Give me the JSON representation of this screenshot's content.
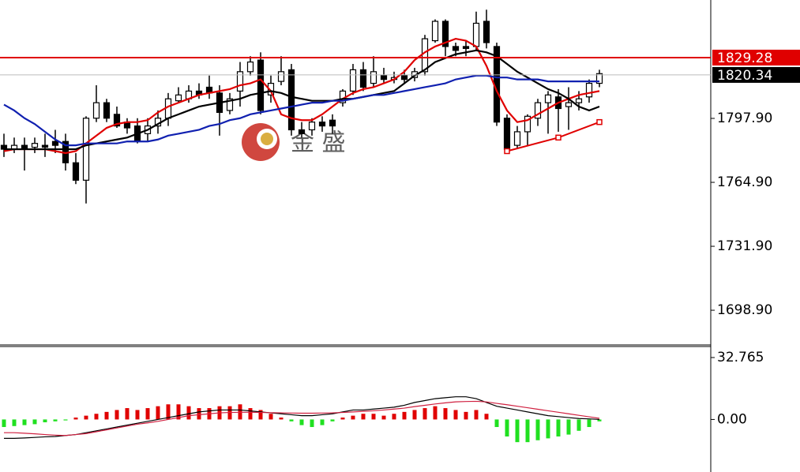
{
  "watermark": "金 盛",
  "chart_data": [
    {
      "type": "candlestick",
      "open": [
        1784,
        1782,
        1784,
        1783,
        1784,
        1786,
        1786,
        1775,
        1766,
        1798,
        1806,
        1800,
        1796,
        1794,
        1790,
        1794,
        1798,
        1807,
        1808,
        1812,
        1814,
        1811,
        1802,
        1812,
        1822,
        1828,
        1810,
        1817,
        1823,
        1792,
        1792,
        1796,
        1797,
        1806,
        1812,
        1823,
        1816,
        1820,
        1818,
        1820,
        1819,
        1822,
        1838,
        1848,
        1835,
        1835,
        1835,
        1848,
        1835,
        1798,
        1784,
        1791,
        1798,
        1806,
        1809,
        1804,
        1806,
        1809,
        1816
      ],
      "high": [
        1790,
        1788,
        1788,
        1788,
        1790,
        1792,
        1790,
        1780,
        1799,
        1815,
        1808,
        1804,
        1798,
        1798,
        1798,
        1802,
        1811,
        1814,
        1815,
        1816,
        1820,
        1815,
        1811,
        1827,
        1830,
        1832,
        1820,
        1830,
        1826,
        1796,
        1798,
        1799,
        1800,
        1813,
        1826,
        1827,
        1830,
        1824,
        1822,
        1823,
        1824,
        1841,
        1849,
        1849,
        1837,
        1838,
        1853,
        1854,
        1837,
        1800,
        1794,
        1800,
        1808,
        1812,
        1813,
        1814,
        1812,
        1818,
        1823
      ],
      "low": [
        1778,
        1780,
        1771,
        1780,
        1778,
        1780,
        1771,
        1764,
        1754,
        1796,
        1796,
        1793,
        1790,
        1785,
        1786,
        1790,
        1794,
        1806,
        1806,
        1808,
        1808,
        1789,
        1800,
        1804,
        1820,
        1800,
        1806,
        1815,
        1789,
        1788,
        1789,
        1791,
        1790,
        1804,
        1810,
        1812,
        1814,
        1816,
        1816,
        1816,
        1817,
        1820,
        1837,
        1830,
        1830,
        1830,
        1833,
        1834,
        1794,
        1780,
        1782,
        1784,
        1794,
        1790,
        1791,
        1792,
        1802,
        1806,
        1814
      ],
      "close": [
        1782,
        1784,
        1782,
        1785,
        1783,
        1784,
        1775,
        1766,
        1798,
        1806,
        1798,
        1794,
        1793,
        1786,
        1794,
        1798,
        1808,
        1810,
        1812,
        1810,
        1811,
        1801,
        1808,
        1822,
        1827,
        1802,
        1816,
        1822,
        1792,
        1790,
        1796,
        1794,
        1794,
        1812,
        1823,
        1814,
        1822,
        1818,
        1819,
        1818,
        1822,
        1839,
        1848,
        1835,
        1833,
        1834,
        1847,
        1837,
        1796,
        1782,
        1791,
        1799,
        1806,
        1810,
        1803,
        1806,
        1808,
        1816,
        1821
      ],
      "up_color": "#ffffff",
      "down_color": "#000000",
      "series": [
        {
          "color": "#e00000",
          "values": [
            1781,
            1782,
            1782,
            1782,
            1782,
            1781,
            1780,
            1781,
            1785,
            1789,
            1793,
            1795,
            1796,
            1796,
            1797,
            1801,
            1804,
            1806,
            1808,
            1810,
            1811,
            1812,
            1813,
            1815,
            1816,
            1818,
            1812,
            1800,
            1798,
            1797,
            1797,
            1800,
            1804,
            1808,
            1811,
            1813,
            1814,
            1816,
            1818,
            1822,
            1828,
            1832,
            1835,
            1837,
            1839,
            1838,
            1835,
            1825,
            1812,
            1802,
            1796,
            1797,
            1800,
            1803,
            1806,
            1808,
            1810,
            1811,
            1812
          ]
        },
        {
          "color": "#000000",
          "values": [
            1782,
            1782,
            1782,
            1782,
            1782,
            1782,
            1782,
            1782,
            1784,
            1785,
            1786,
            1787,
            1788,
            1790,
            1792,
            1795,
            1798,
            1800,
            1802,
            1804,
            1805,
            1806,
            1807,
            1808,
            1810,
            1811,
            1812,
            1811,
            1809,
            1808,
            1807,
            1807,
            1807,
            1808,
            1808,
            1809,
            1810,
            1811,
            1812,
            1816,
            1820,
            1823,
            1827,
            1829,
            1831,
            1832,
            1833,
            1832,
            1830,
            1826,
            1822,
            1819,
            1816,
            1813,
            1811,
            1808,
            1804,
            1802,
            1804
          ]
        },
        {
          "color": "#1020b0",
          "values": [
            1805,
            1802,
            1798,
            1795,
            1791,
            1787,
            1784,
            1784,
            1785,
            1785,
            1785,
            1785,
            1786,
            1786,
            1786,
            1787,
            1789,
            1790,
            1791,
            1792,
            1794,
            1795,
            1797,
            1798,
            1800,
            1801,
            1802,
            1803,
            1804,
            1805,
            1806,
            1806,
            1807,
            1807,
            1808,
            1809,
            1810,
            1810,
            1811,
            1812,
            1813,
            1814,
            1815,
            1816,
            1818,
            1819,
            1820,
            1820,
            1819,
            1819,
            1818,
            1818,
            1818,
            1817,
            1817,
            1817,
            1817,
            1817,
            1817
          ]
        }
      ],
      "trendline": {
        "color": "#e00000",
        "x": [
          49,
          54,
          58
        ],
        "values": [
          1781,
          1788,
          1796
        ]
      },
      "price_lines": [
        {
          "value": 1829.28,
          "label": "1829.28",
          "color": "#e00000"
        },
        {
          "value": 1820.34,
          "label": "1820.34",
          "color": "#000000"
        }
      ],
      "ylim": [
        1681.0,
        1859.0
      ],
      "yticks": [
        {
          "value": 1797.9,
          "label": "1797.90"
        },
        {
          "value": 1764.9,
          "label": "1764.90"
        },
        {
          "value": 1731.9,
          "label": "1731.90"
        },
        {
          "value": 1698.9,
          "label": "1698.90"
        }
      ]
    },
    {
      "type": "macd",
      "values": [
        -4,
        -3.5,
        -3,
        -2.5,
        -1.5,
        -1,
        -0.5,
        1,
        2,
        3,
        4,
        5,
        6,
        5,
        6,
        7,
        8,
        8,
        7,
        6,
        6,
        7,
        7,
        8,
        6,
        5,
        3,
        1,
        -1,
        -3,
        -4,
        -3,
        -1,
        1,
        2,
        3,
        3,
        2,
        3,
        4,
        5,
        6,
        7,
        6,
        5,
        4,
        5,
        3,
        -4,
        -9,
        -12,
        -12,
        -11,
        -10,
        -9,
        -8,
        -6,
        -4,
        -1
      ],
      "up_color": "#e00000",
      "down_color": "#20e020",
      "series": [
        {
          "color": "#000000",
          "values": [
            -10,
            -10,
            -9.8,
            -9.5,
            -9.2,
            -9,
            -8.5,
            -8,
            -7,
            -6,
            -5,
            -4,
            -3,
            -2,
            -1,
            0,
            1,
            2,
            3,
            4,
            4.5,
            5,
            5,
            5,
            4.5,
            4,
            3.5,
            3,
            2.5,
            2,
            2,
            2.5,
            3,
            4,
            5,
            5,
            5.5,
            6,
            6.5,
            7.5,
            9,
            10,
            11,
            11.5,
            12,
            12,
            11,
            9,
            7,
            6,
            5,
            4,
            3,
            2,
            1.5,
            1,
            0.5,
            0.3,
            0
          ]
        },
        {
          "color": "#d02040",
          "values": [
            -7,
            -7,
            -7.3,
            -7.6,
            -8,
            -8.3,
            -8.5,
            -8,
            -7.5,
            -6.5,
            -5.5,
            -4.5,
            -3.5,
            -2.5,
            -1.8,
            -1,
            0,
            1,
            2,
            2.5,
            3,
            3.5,
            3.7,
            3.8,
            3.8,
            3.7,
            3.6,
            3.5,
            3.4,
            3.3,
            3.3,
            3.4,
            3.5,
            3.7,
            4,
            4.3,
            4.6,
            5,
            5.5,
            6,
            6.8,
            7.5,
            8.2,
            8.8,
            9.3,
            9.5,
            9.6,
            9.3,
            8.5,
            7.8,
            7,
            6.2,
            5.4,
            4.6,
            3.8,
            3,
            2.2,
            1.4,
            0.6
          ]
        }
      ],
      "ylim": [
        -27.8,
        38.6
      ],
      "yticks": [
        32.765,
        {
          "value": 0,
          "label": "0.00"
        }
      ]
    }
  ]
}
